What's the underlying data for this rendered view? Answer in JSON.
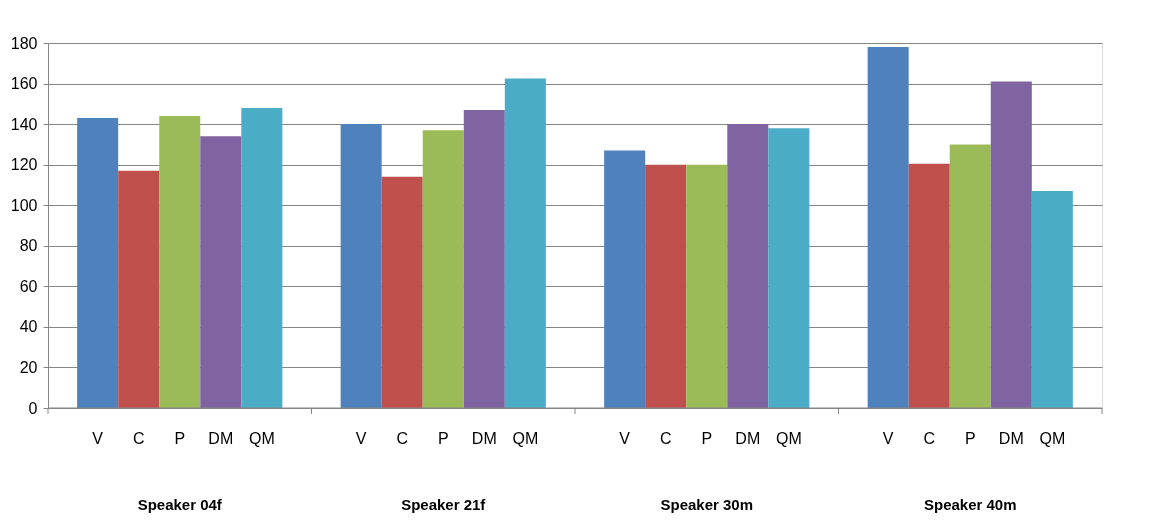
{
  "chart_data": {
    "type": "bar",
    "categories": [
      "V",
      "C",
      "P",
      "DM",
      "QM",
      "V",
      "C",
      "P",
      "DM",
      "QM",
      "V",
      "C",
      "P",
      "DM",
      "QM",
      "V",
      "C",
      "P",
      "DM",
      "QM"
    ],
    "values": [
      143,
      117,
      144,
      134,
      148,
      140,
      114,
      137,
      147,
      162.5,
      127,
      120,
      120,
      140,
      138,
      178,
      120.5,
      130,
      161,
      107
    ],
    "colors": [
      "#4f81bd",
      "#c0504d",
      "#9bbb59",
      "#8064a2",
      "#4bacc6",
      "#4f81bd",
      "#c0504d",
      "#9bbb59",
      "#8064a2",
      "#4bacc6",
      "#4f81bd",
      "#c0504d",
      "#9bbb59",
      "#8064a2",
      "#4bacc6",
      "#4f81bd",
      "#c0504d",
      "#9bbb59",
      "#8064a2",
      "#4bacc6"
    ],
    "annotations": [
      "Speaker 04f",
      "Speaker 21f",
      "Speaker 30m",
      "Speaker 40m"
    ],
    "ylim": [
      0,
      180
    ],
    "yticks": [
      0,
      20,
      40,
      60,
      80,
      100,
      120,
      140,
      160,
      180
    ],
    "grid": "y"
  }
}
